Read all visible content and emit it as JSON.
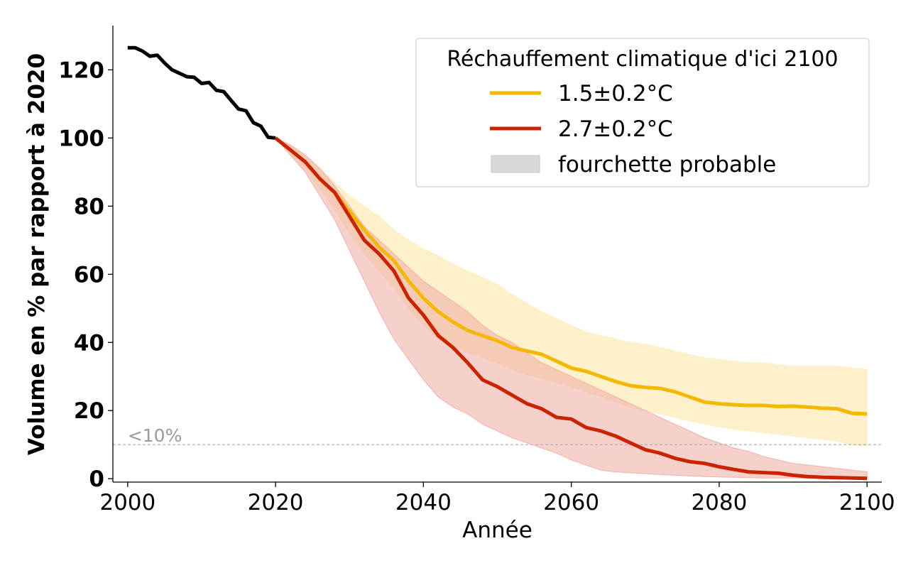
{
  "chart_data": {
    "type": "line",
    "xlabel": "Année",
    "ylabel": "Volume en % par rapport à 2020",
    "xlim": [
      1998,
      2102
    ],
    "ylim": [
      -1,
      133
    ],
    "xticks": [
      2000,
      2020,
      2040,
      2060,
      2080,
      2100
    ],
    "yticks": [
      0,
      20,
      40,
      60,
      80,
      100,
      120
    ],
    "grid": false,
    "legend": {
      "title": "Réchauffement climatique d'ici 2100",
      "placement": "top-right",
      "entries": [
        "1.5±0.2°C",
        "2.7±0.2°C",
        "fourchette probable"
      ]
    },
    "reference_line": {
      "y": 10,
      "label": "<10%"
    },
    "colors": {
      "historical": "#000000",
      "scenario_15": "#f5b800",
      "scenario_15_band": "#fdeec2",
      "scenario_27": "#cc2200",
      "scenario_27_band": "#f0b2a8",
      "band_legend": "#d8d8d8",
      "reference_line": "#b0b0b0",
      "reference_text": "#9a9a9a"
    },
    "series": [
      {
        "key": "historical",
        "x": [
          2000,
          2001,
          2002,
          2003,
          2004,
          2005,
          2006,
          2007,
          2008,
          2009,
          2010,
          2011,
          2012,
          2013,
          2014,
          2015,
          2016,
          2017,
          2018,
          2019,
          2020
        ],
        "values": [
          126.5,
          126.5,
          125.5,
          124,
          124.3,
          122,
          120,
          119,
          118,
          117.8,
          116,
          116.3,
          114,
          113.6,
          111,
          108.5,
          108,
          104.5,
          103.5,
          100.2,
          100
        ]
      },
      {
        "name": "1.5±0.2°C",
        "key": "scenario_15",
        "x": [
          2020,
          2022,
          2024,
          2026,
          2028,
          2030,
          2032,
          2034,
          2036,
          2038,
          2040,
          2042,
          2044,
          2046,
          2048,
          2050,
          2052,
          2054,
          2056,
          2058,
          2060,
          2062,
          2064,
          2066,
          2068,
          2070,
          2072,
          2074,
          2076,
          2078,
          2080,
          2082,
          2084,
          2086,
          2088,
          2090,
          2092,
          2094,
          2096,
          2098,
          2100
        ],
        "values": [
          100,
          96.5,
          93,
          88,
          84,
          78.5,
          73,
          68,
          64,
          58,
          53,
          49,
          46,
          43.5,
          42,
          40.5,
          38.5,
          37.5,
          36.5,
          34.5,
          32.5,
          31.5,
          30,
          28.5,
          27.3,
          26.8,
          26.5,
          25.5,
          24,
          22.5,
          22,
          21.7,
          21.5,
          21.5,
          21.2,
          21.3,
          21,
          20.7,
          20.5,
          19.2,
          19
        ],
        "band_low": [
          100,
          95,
          91,
          85,
          79,
          72,
          66,
          61,
          56,
          50,
          45,
          41,
          39,
          37,
          35.5,
          34,
          32,
          30.5,
          29.5,
          28.2,
          27,
          25.5,
          24,
          22.5,
          21,
          20,
          19,
          18,
          17,
          16,
          15.2,
          14.5,
          14,
          13.5,
          13,
          12.5,
          12,
          11.5,
          11,
          10,
          9.5
        ],
        "band_high": [
          100,
          98,
          95,
          91,
          87,
          83,
          80,
          77,
          73,
          70,
          67.5,
          65.5,
          63,
          61,
          59,
          57,
          54,
          51.5,
          49,
          47,
          45,
          43,
          42,
          41,
          40,
          39.5,
          38.5,
          37.5,
          36.5,
          35.5,
          35,
          34.5,
          34,
          34,
          33.5,
          33,
          33,
          33,
          33,
          32.5,
          32
        ]
      },
      {
        "name": "2.7±0.2°C",
        "key": "scenario_27",
        "x": [
          2020,
          2022,
          2024,
          2026,
          2028,
          2030,
          2032,
          2034,
          2036,
          2038,
          2040,
          2042,
          2044,
          2046,
          2048,
          2050,
          2052,
          2054,
          2056,
          2058,
          2060,
          2062,
          2064,
          2066,
          2068,
          2070,
          2072,
          2074,
          2076,
          2078,
          2080,
          2082,
          2084,
          2086,
          2088,
          2090,
          2092,
          2094,
          2096,
          2098,
          2100
        ],
        "values": [
          100,
          96.5,
          93,
          88,
          84,
          77,
          70,
          66,
          61,
          53,
          48,
          42,
          38.5,
          34,
          29,
          27,
          24.5,
          22,
          20.5,
          18,
          17.5,
          15,
          14,
          12.5,
          10.5,
          8.5,
          7.5,
          6,
          5,
          4.5,
          3.5,
          2.7,
          2,
          1.8,
          1.6,
          1,
          0.6,
          0.4,
          0.3,
          0.2,
          0.1
        ],
        "band_low": [
          100,
          95,
          90,
          83,
          76,
          67,
          58,
          49,
          41,
          35,
          29,
          24,
          21,
          19,
          16,
          14,
          12,
          10.5,
          9,
          7.5,
          5.5,
          4,
          2.5,
          2,
          1.7,
          1.5,
          1.2,
          1,
          0.8,
          0.6,
          0.5,
          0.4,
          0.3,
          0.2,
          0.2,
          0.2,
          0.1,
          0.1,
          0.1,
          0.1,
          0
        ],
        "band_high": [
          100,
          98,
          95,
          91,
          86,
          80,
          74,
          70,
          66,
          62,
          58,
          55,
          52,
          49,
          45,
          42,
          40,
          37,
          34,
          32,
          30,
          28,
          26,
          24,
          22,
          20,
          18,
          16,
          14,
          12,
          10.5,
          9,
          8,
          6.5,
          5.5,
          4.5,
          4,
          3.5,
          3,
          2.5,
          2
        ]
      }
    ]
  }
}
